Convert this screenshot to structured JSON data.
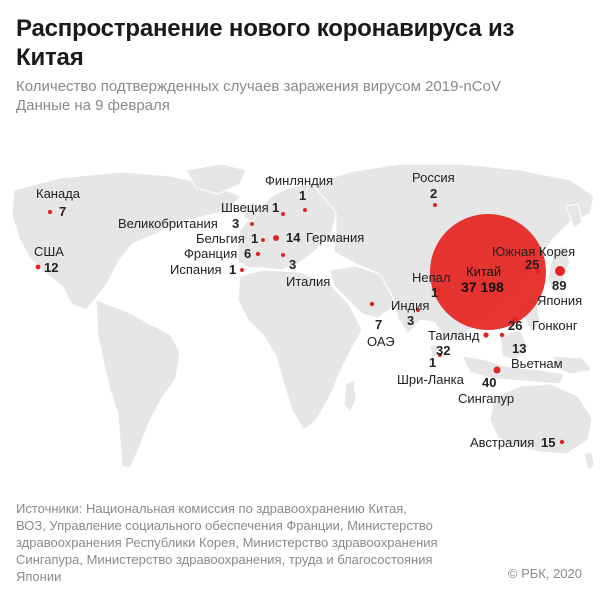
{
  "header": {
    "title": "Распространение нового коронавируса из Китая",
    "subtitle_line1": "Количество подтвержденных случаев заражения вирусом 2019-nCoV",
    "subtitle_line2": "Данные на 9 февраля"
  },
  "colors": {
    "marker": "#e52421",
    "china_bubble": "#e52421",
    "land": "#e6e6e6",
    "text": "#222222"
  },
  "countries": [
    {
      "name": "Канада",
      "cases": "7"
    },
    {
      "name": "США",
      "cases": "12"
    },
    {
      "name": "Финляндия",
      "cases": "1"
    },
    {
      "name": "Россия",
      "cases": "2"
    },
    {
      "name": "Швеция",
      "cases": "1"
    },
    {
      "name": "Великобритания",
      "cases": "3"
    },
    {
      "name": "Бельгия",
      "cases": "1"
    },
    {
      "name": "Германия",
      "cases": "14"
    },
    {
      "name": "Франция",
      "cases": "6"
    },
    {
      "name": "Испания",
      "cases": "1"
    },
    {
      "name": "Италия",
      "cases": "3"
    },
    {
      "name": "ОАЭ",
      "cases": "7"
    },
    {
      "name": "Индия",
      "cases": "3"
    },
    {
      "name": "Непал",
      "cases": "1"
    },
    {
      "name": "Китай",
      "cases": "37 198"
    },
    {
      "name": "Южная Корея",
      "cases": "25"
    },
    {
      "name": "Япония",
      "cases": "89"
    },
    {
      "name": "Гонконг",
      "cases": "26"
    },
    {
      "name": "Таиланд",
      "cases": "32"
    },
    {
      "name": "Вьетнам",
      "cases": "13"
    },
    {
      "name": "Шри-Ланка",
      "cases": "1"
    },
    {
      "name": "Сингапур",
      "cases": "40"
    },
    {
      "name": "Австралия",
      "cases": "15"
    }
  ],
  "footer": {
    "sources_line1": "Источники: Национальная комиссия по здравоохранению Китая,",
    "sources_line2": "ВОЗ, Управление социального обеспечения Франции, Министерство",
    "sources_line3": "здравоохранения Республики Корея, Министерство здравоохранения",
    "sources_line4": "Сингапура, Министерство здравоохранения, труда и благосостояния",
    "sources_line5": "Японии",
    "copyright": "© РБК, 2020"
  }
}
